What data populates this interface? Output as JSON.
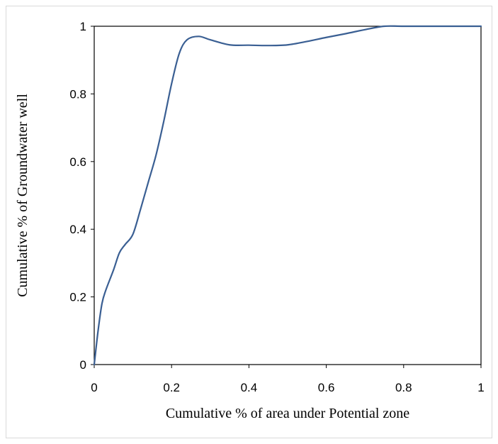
{
  "chart_data": {
    "type": "line",
    "title": "",
    "xlabel": "Cumulative % of area under Potential zone",
    "ylabel": "Cumulative % of Groundwater well",
    "xlim": [
      0,
      1
    ],
    "ylim": [
      0,
      1
    ],
    "x_ticks": [
      "0",
      "0.2",
      "0.4",
      "0.6",
      "0.8",
      "1"
    ],
    "y_ticks": [
      "0",
      "0.2",
      "0.4",
      "0.6",
      "0.8",
      "1"
    ],
    "grid": false,
    "legend": "none",
    "series": [
      {
        "color": "#3a5f93",
        "points": [
          [
            0.0,
            0.0
          ],
          [
            0.01,
            0.1
          ],
          [
            0.02,
            0.18
          ],
          [
            0.03,
            0.22
          ],
          [
            0.05,
            0.28
          ],
          [
            0.065,
            0.33
          ],
          [
            0.08,
            0.355
          ],
          [
            0.1,
            0.385
          ],
          [
            0.12,
            0.46
          ],
          [
            0.14,
            0.54
          ],
          [
            0.16,
            0.62
          ],
          [
            0.18,
            0.72
          ],
          [
            0.2,
            0.83
          ],
          [
            0.22,
            0.92
          ],
          [
            0.24,
            0.96
          ],
          [
            0.27,
            0.97
          ],
          [
            0.3,
            0.96
          ],
          [
            0.35,
            0.945
          ],
          [
            0.4,
            0.944
          ],
          [
            0.45,
            0.943
          ],
          [
            0.5,
            0.945
          ],
          [
            0.55,
            0.955
          ],
          [
            0.6,
            0.967
          ],
          [
            0.65,
            0.978
          ],
          [
            0.7,
            0.99
          ],
          [
            0.75,
            1.0
          ],
          [
            0.8,
            1.0
          ],
          [
            0.9,
            1.0
          ],
          [
            1.0,
            1.0
          ]
        ]
      }
    ]
  }
}
